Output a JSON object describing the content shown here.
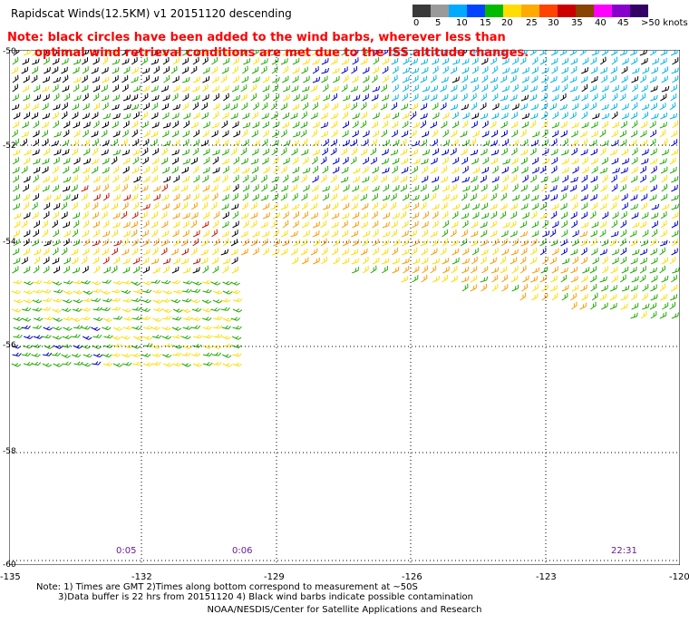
{
  "header": {
    "title": "Rapidscat Winds(12.5KM) v1 20151120 descending",
    "note_line1": "Note: black circles have been added to the wind barbs, wherever less than",
    "note_line2": "optimal wind retrieval conditions are met due to the ISS altitude changes."
  },
  "colorbar": {
    "labels": [
      "0",
      "5",
      "10",
      "15",
      "20",
      "25",
      "30",
      "35",
      "40",
      "45",
      ">50 knots"
    ],
    "colors": [
      "#3a3a3a",
      "#9a9a9a",
      "#00aaff",
      "#0044ff",
      "#00bb00",
      "#ffdd00",
      "#ffaa00",
      "#ff4400",
      "#cc0000",
      "#884400",
      "#ff00ff",
      "#8800cc",
      "#330066"
    ]
  },
  "map": {
    "lon_labels": [
      "-135",
      "-132",
      "-129",
      "-126",
      "-123",
      "-120"
    ],
    "lat_labels": [
      "-50",
      "-52",
      "-54",
      "-56",
      "-58",
      "-60"
    ],
    "time_labels": [
      "0:05",
      "0:06",
      "22:31"
    ],
    "barb_colors": {
      "light_blue": "#00b4e6",
      "blue": "#0000cc",
      "green": "#22aa00",
      "yellow": "#ffdd00",
      "orange": "#ff9900",
      "red": "#cc1100",
      "black": "#000000"
    }
  },
  "footer": {
    "note_line1": "Note: 1) Times are GMT 2)Times along bottom correspond to measurement at ~50S",
    "note_line2": "3)Data buffer is 22 hrs from 20151120 4) Black wind barbs indicate possible contamination",
    "credit": "NOAA/NESDIS/Center for Satellite Applications and Research"
  }
}
